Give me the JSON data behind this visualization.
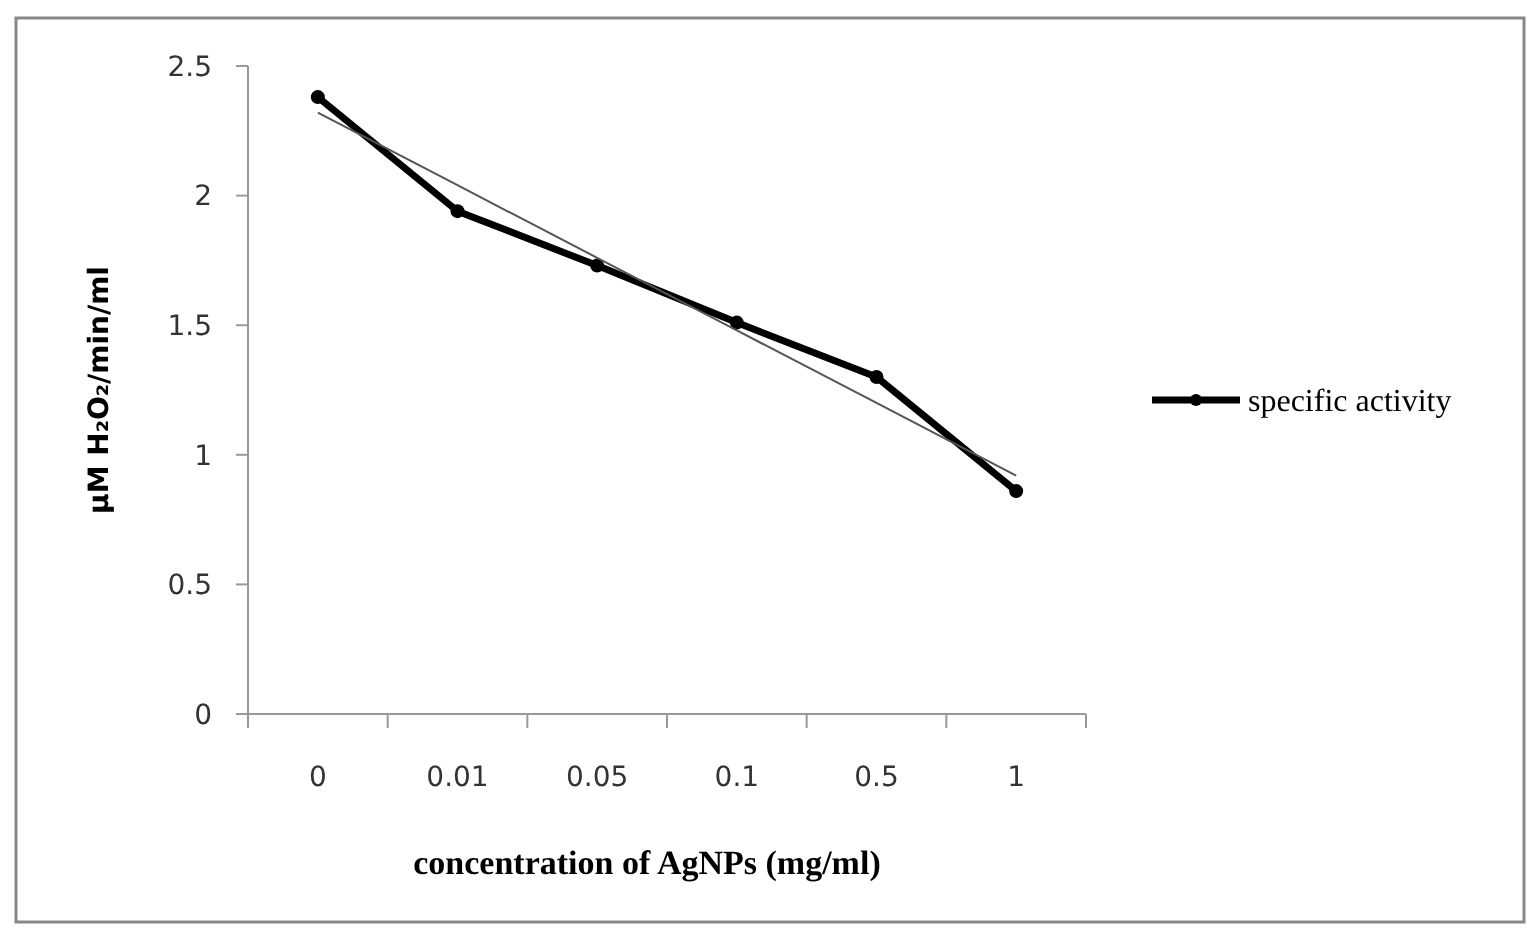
{
  "chart_data": {
    "type": "line",
    "xlabel": "concentration of AgNPs (mg/ml)",
    "ylabel": "µM H₂O₂/min/ml",
    "categories": [
      "0",
      "0.01",
      "0.05",
      "0.1",
      "0.5",
      "1"
    ],
    "series": [
      {
        "name": "specific activity",
        "color": "#000000",
        "values": [
          2.38,
          1.94,
          1.73,
          1.51,
          1.3,
          0.86
        ],
        "marker": "circle"
      },
      {
        "color": "#555555",
        "values": [
          2.32,
          2.04,
          1.76,
          1.48,
          1.2,
          0.92
        ],
        "marker": "none"
      }
    ],
    "ylim": [
      0,
      2.5
    ],
    "yticks": [
      0,
      0.5,
      1,
      1.5,
      2,
      2.5
    ],
    "grid": false,
    "legend": "right"
  }
}
